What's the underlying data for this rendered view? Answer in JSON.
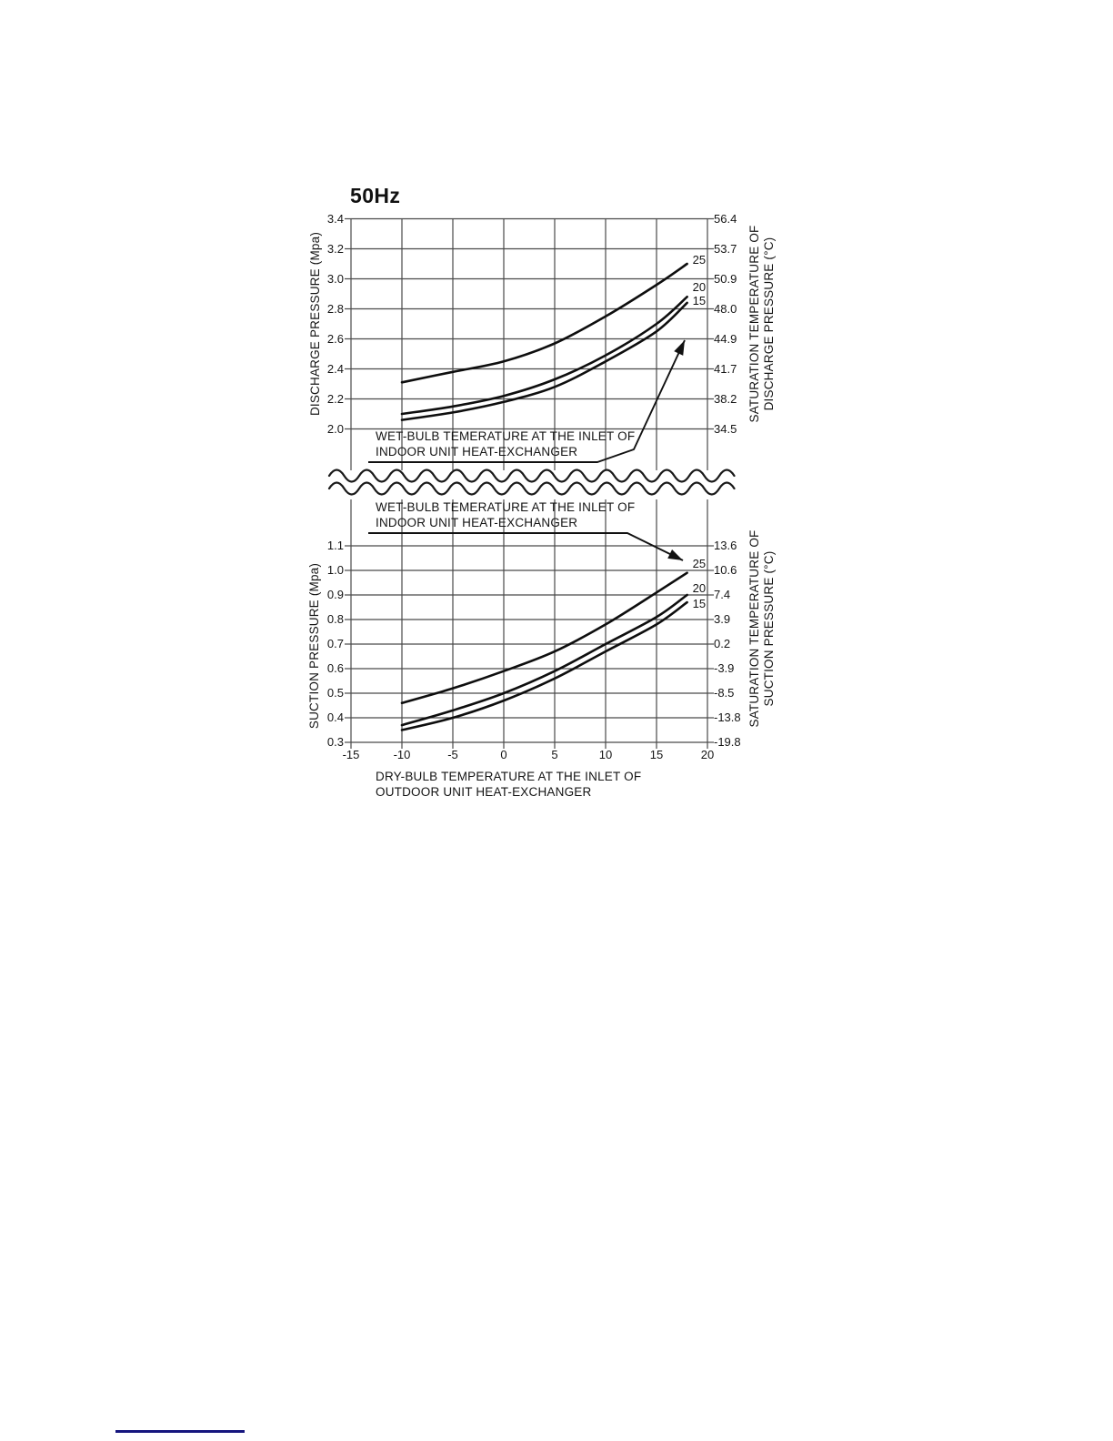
{
  "page": {
    "background": "#ffffff",
    "footer_rule_color": "#15157e"
  },
  "chart_data": [
    {
      "type": "line",
      "title": "50Hz",
      "x": [
        -10,
        -5,
        0,
        5,
        10,
        15,
        18
      ],
      "x_axis": {
        "ticks": [
          "-15",
          "-10",
          "-5",
          "0",
          "5",
          "10",
          "15",
          "20"
        ],
        "range": [
          -15,
          20
        ],
        "show_tick_labels": false,
        "label": ""
      },
      "left_axis": {
        "label": "DISCHARGE PRESSURE (Mpa)",
        "ticks": [
          "3.4",
          "3.2",
          "3.0",
          "2.8",
          "2.6",
          "2.4",
          "2.2",
          "2.0"
        ],
        "range": [
          2.0,
          3.4
        ]
      },
      "right_axis": {
        "label": "SATURATION TEMPERATURE OF\nDISCHARGE PRESSURE (°C)",
        "ticks": [
          "56.4",
          "53.7",
          "50.9",
          "48.0",
          "44.9",
          "41.7",
          "38.2",
          "34.5"
        ]
      },
      "series": [
        {
          "name": "25",
          "values": [
            2.31,
            2.38,
            2.45,
            2.57,
            2.75,
            2.96,
            3.1
          ]
        },
        {
          "name": "20",
          "values": [
            2.1,
            2.15,
            2.22,
            2.33,
            2.49,
            2.7,
            2.88
          ]
        },
        {
          "name": "15",
          "values": [
            2.06,
            2.11,
            2.18,
            2.28,
            2.45,
            2.65,
            2.84
          ]
        }
      ],
      "annotation": "WET-BULB TEMERATURE AT THE INLET OF\nINDOOR UNIT HEAT-EXCHANGER",
      "grid": true,
      "legend_position": "curve-end-labels"
    },
    {
      "type": "line",
      "title": "",
      "x": [
        -10,
        -5,
        0,
        5,
        10,
        15,
        18
      ],
      "x_axis": {
        "ticks": [
          "-15",
          "-10",
          "-5",
          "0",
          "5",
          "10",
          "15",
          "20"
        ],
        "range": [
          -15,
          20
        ],
        "show_tick_labels": true,
        "label": "DRY-BULB TEMPERATURE AT THE INLET OF\nOUTDOOR UNIT HEAT-EXCHANGER"
      },
      "left_axis": {
        "label": "SUCTION PRESSURE (Mpa)",
        "ticks": [
          "1.1",
          "1.0",
          "0.9",
          "0.8",
          "0.7",
          "0.6",
          "0.5",
          "0.4",
          "0.3"
        ],
        "range": [
          0.3,
          1.1
        ]
      },
      "right_axis": {
        "label": "SATURATION TEMPERATURE OF\nSUCTION PRESSURE (°C)",
        "ticks": [
          "13.6",
          "10.6",
          "7.4",
          "3.9",
          "0.2",
          "-3.9",
          "-8.5",
          "-13.8",
          "-19.8"
        ]
      },
      "series": [
        {
          "name": "25",
          "values": [
            0.46,
            0.52,
            0.59,
            0.67,
            0.78,
            0.91,
            0.99
          ]
        },
        {
          "name": "20",
          "values": [
            0.37,
            0.43,
            0.5,
            0.59,
            0.7,
            0.81,
            0.9
          ]
        },
        {
          "name": "15",
          "values": [
            0.35,
            0.4,
            0.47,
            0.56,
            0.67,
            0.78,
            0.87
          ]
        }
      ],
      "annotation": "WET-BULB TEMERATURE AT THE INLET OF\nINDOOR UNIT HEAT-EXCHANGER",
      "grid": true,
      "legend_position": "curve-end-labels"
    }
  ]
}
